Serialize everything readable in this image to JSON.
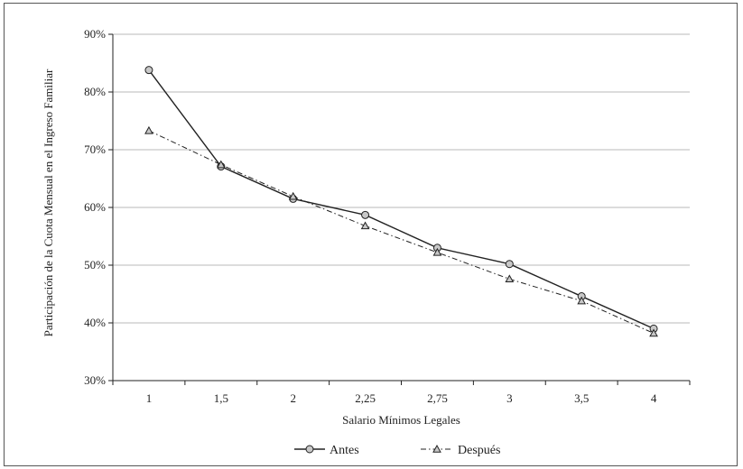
{
  "chart_data": {
    "type": "line",
    "title": "",
    "xlabel": "Salario Mínimos Legales",
    "ylabel": "Participación de la Cuota Mensual en el Ingreso Familiar",
    "categories": [
      "1",
      "1,5",
      "2",
      "2,25",
      "2,75",
      "3",
      "3,5",
      "4"
    ],
    "ylim": [
      30,
      90
    ],
    "y_ticks": [
      "30%",
      "40%",
      "50%",
      "60%",
      "70%",
      "80%",
      "90%"
    ],
    "grid": "horizontal",
    "legend_position": "bottom",
    "series": [
      {
        "name": "Antes",
        "marker": "circle",
        "style": "solid",
        "values": [
          83.8,
          67.1,
          61.5,
          58.7,
          53.0,
          50.2,
          44.6,
          39.0
        ]
      },
      {
        "name": "Después",
        "marker": "triangle",
        "style": "dash-dot",
        "values": [
          73.3,
          67.4,
          61.9,
          56.8,
          52.2,
          47.6,
          43.8,
          38.2
        ]
      }
    ]
  }
}
